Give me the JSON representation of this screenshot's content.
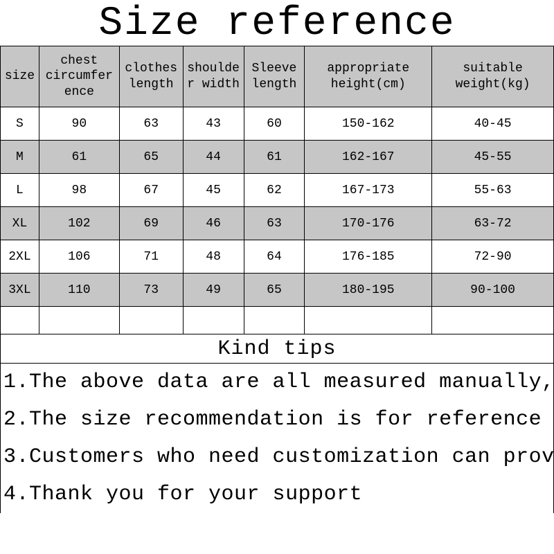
{
  "title": "Size reference",
  "table": {
    "type": "table",
    "header_bg": "#c6c6c6",
    "row_odd_bg": "#ffffff",
    "row_even_bg": "#c6c6c6",
    "border_color": "#000000",
    "font_family": "Courier New",
    "header_fontsize": 18,
    "cell_fontsize": 18,
    "col_widths_pct": [
      7.0,
      14.5,
      11.5,
      11.0,
      11.0,
      23.0,
      22.0
    ],
    "columns": [
      "size",
      "chest circumference",
      "clothes length",
      "shoulder width",
      "Sleeve length",
      "appropriate height(cm)",
      "suitable weight(kg)"
    ],
    "rows": [
      [
        "S",
        "90",
        "63",
        "43",
        "60",
        "150-162",
        "40-45"
      ],
      [
        "M",
        "61",
        "65",
        "44",
        "61",
        "162-167",
        "45-55"
      ],
      [
        "L",
        "98",
        "67",
        "45",
        "62",
        "167-173",
        "55-63"
      ],
      [
        "XL",
        "102",
        "69",
        "46",
        "63",
        "170-176",
        "63-72"
      ],
      [
        "2XL",
        "106",
        "71",
        "48",
        "64",
        "176-185",
        "72-90"
      ],
      [
        "3XL",
        "110",
        "73",
        "49",
        "65",
        "180-195",
        "90-100"
      ]
    ]
  },
  "tips": {
    "title": "Kind tips",
    "title_fontsize": 30,
    "item_fontsize": 30,
    "items": [
      "1.The above data are all measured manually,",
      "2.The size recommendation is for reference",
      "3.Customers who need customization can prov",
      "4.Thank you for your support"
    ]
  },
  "colors": {
    "background": "#ffffff",
    "text": "#000000",
    "grid": "#000000",
    "banded_light": "#ffffff",
    "banded_dark": "#c6c6c6"
  }
}
